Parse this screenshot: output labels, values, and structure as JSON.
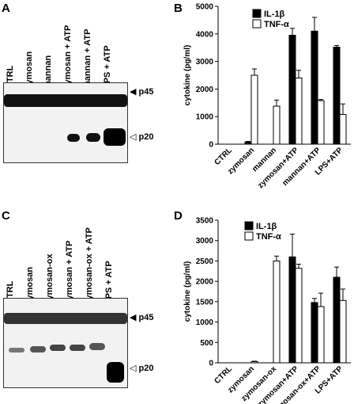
{
  "panels": {
    "A": {
      "letter": "A",
      "lanes": [
        "CTRL",
        "zymosan",
        "mannan",
        "zymosan + ATP",
        "mannan + ATP",
        "LPS + ATP"
      ],
      "markers": [
        "p45",
        "p20"
      ]
    },
    "C": {
      "letter": "C",
      "lanes": [
        "CTRL",
        "zymosan",
        "zymosan-ox",
        "zymosan + ATP",
        "zymosan-ox + ATP",
        "LPS + ATP"
      ],
      "markers": [
        "p45",
        "p20"
      ]
    }
  },
  "chart_data": [
    {
      "panel": "B",
      "type": "bar",
      "ylabel": "cytokine (pg/ml)",
      "ylim": [
        0,
        5000
      ],
      "yticks": [
        "0",
        "1000",
        "2000",
        "3000",
        "4000",
        "5000"
      ],
      "categories": [
        "CTRL",
        "zymosan",
        "mannan",
        "zymosan+ATP",
        "mannan+ATP",
        "LPS+ATP"
      ],
      "legend_position": "top-left",
      "series": [
        {
          "name": "IL-1β",
          "color": "#000000",
          "values": [
            0,
            80,
            0,
            3950,
            4100,
            3520
          ],
          "errors": [
            0,
            20,
            0,
            250,
            500,
            60
          ]
        },
        {
          "name": "TNF-α",
          "color": "#ffffff",
          "values": [
            0,
            2500,
            1380,
            2400,
            1580,
            1080
          ],
          "errors": [
            0,
            230,
            220,
            280,
            40,
            380
          ]
        }
      ]
    },
    {
      "panel": "D",
      "type": "bar",
      "ylabel": "cytokine (pg/ml)",
      "ylim": [
        0,
        3500
      ],
      "yticks": [
        "0",
        "500",
        "1000",
        "1500",
        "2000",
        "2500",
        "3000",
        "3500"
      ],
      "categories": [
        "CTRL",
        "zymosan",
        "zymosan-ox",
        "zymosan+ATP",
        "zymosan-ox+ATP",
        "LPS+ATP"
      ],
      "legend_position": "top-left",
      "series": [
        {
          "name": "IL-1β",
          "color": "#000000",
          "values": [
            0,
            0,
            0,
            2600,
            1480,
            2100
          ],
          "errors": [
            0,
            0,
            0,
            560,
            100,
            250
          ]
        },
        {
          "name": "TNF-α",
          "color": "#ffffff",
          "values": [
            0,
            30,
            2500,
            2320,
            1380,
            1530
          ],
          "errors": [
            0,
            10,
            120,
            100,
            330,
            280
          ],
          "first_errors": [
            0,
            0,
            0,
            0,
            0,
            0
          ]
        }
      ]
    }
  ],
  "letters": {
    "B": "B",
    "D": "D"
  }
}
